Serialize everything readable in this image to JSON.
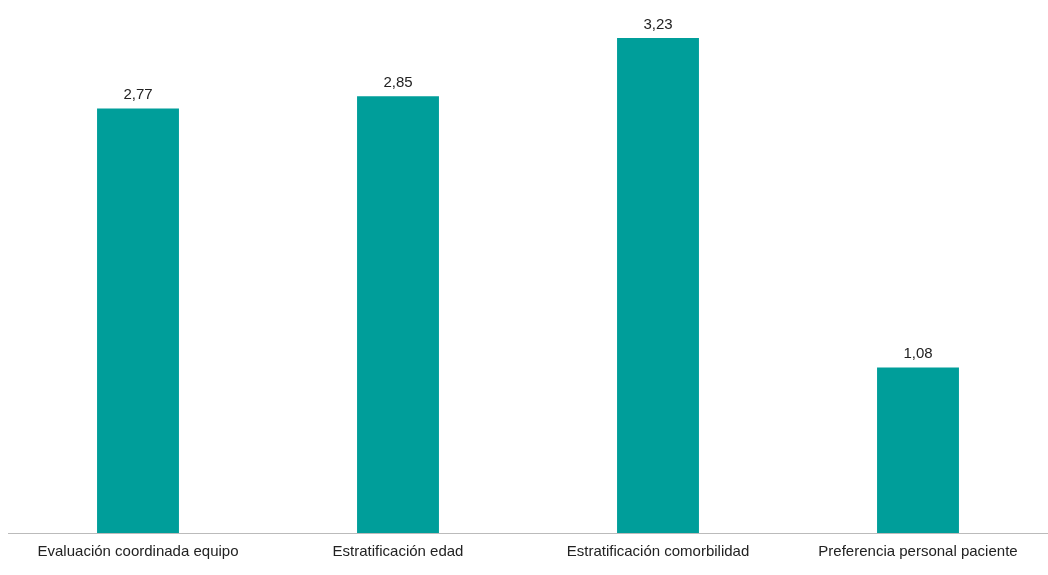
{
  "chart_data": {
    "type": "bar",
    "categories": [
      "Evaluación coordinada equipo",
      "Estratificación edad",
      "Estratificación comorbilidad",
      "Preferencia personal paciente"
    ],
    "values": [
      2.77,
      2.85,
      3.23,
      1.08
    ],
    "value_labels": [
      "2,77",
      "2,85",
      "3,23",
      "1,08"
    ],
    "color": "#009e9a",
    "relative": false,
    "grid": false,
    "legend": false
  }
}
